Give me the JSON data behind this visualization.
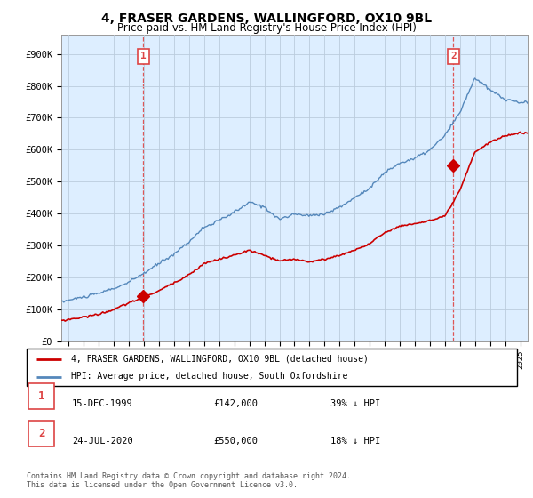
{
  "title": "4, FRASER GARDENS, WALLINGFORD, OX10 9BL",
  "subtitle": "Price paid vs. HM Land Registry's House Price Index (HPI)",
  "title_fontsize": 10,
  "subtitle_fontsize": 8.5,
  "ylabel_ticks": [
    "£0",
    "£100K",
    "£200K",
    "£300K",
    "£400K",
    "£500K",
    "£600K",
    "£700K",
    "£800K",
    "£900K"
  ],
  "ytick_values": [
    0,
    100000,
    200000,
    300000,
    400000,
    500000,
    600000,
    700000,
    800000,
    900000
  ],
  "ylim": [
    0,
    960000
  ],
  "xlim_start": 1994.5,
  "xlim_end": 2025.5,
  "hpi_color": "#5588bb",
  "price_color": "#cc0000",
  "dashed_color": "#dd4444",
  "chart_bg": "#ddeeff",
  "transaction1_x": 1999.96,
  "transaction1_y": 142000,
  "transaction1_label": "1",
  "transaction1_date": "15-DEC-1999",
  "transaction1_price": "£142,000",
  "transaction1_hpi": "39% ↓ HPI",
  "transaction2_x": 2020.56,
  "transaction2_y": 550000,
  "transaction2_label": "2",
  "transaction2_date": "24-JUL-2020",
  "transaction2_price": "£550,000",
  "transaction2_hpi": "18% ↓ HPI",
  "legend_line1": "4, FRASER GARDENS, WALLINGFORD, OX10 9BL (detached house)",
  "legend_line2": "HPI: Average price, detached house, South Oxfordshire",
  "footer": "Contains HM Land Registry data © Crown copyright and database right 2024.\nThis data is licensed under the Open Government Licence v3.0.",
  "background_color": "#ffffff",
  "grid_color": "#bbccdd",
  "hpi_key_years": [
    1994,
    1995,
    1996,
    1997,
    1998,
    1999,
    2000,
    2001,
    2002,
    2003,
    2004,
    2005,
    2006,
    2007,
    2008,
    2009,
    2010,
    2011,
    2012,
    2013,
    2014,
    2015,
    2016,
    2017,
    2018,
    2019,
    2020,
    2021,
    2022,
    2023,
    2024,
    2025
  ],
  "hpi_key_vals": [
    118000,
    128000,
    138000,
    148000,
    163000,
    182000,
    210000,
    240000,
    270000,
    310000,
    355000,
    375000,
    400000,
    430000,
    415000,
    378000,
    393000,
    388000,
    395000,
    415000,
    445000,
    478000,
    525000,
    555000,
    570000,
    595000,
    640000,
    710000,
    820000,
    780000,
    750000,
    740000
  ],
  "price_key_years": [
    1994,
    1995,
    1996,
    1997,
    1998,
    1999,
    2000,
    2001,
    2002,
    2003,
    2004,
    2005,
    2006,
    2007,
    2008,
    2009,
    2010,
    2011,
    2012,
    2013,
    2014,
    2015,
    2016,
    2017,
    2018,
    2019,
    2020,
    2021,
    2022,
    2023,
    2024,
    2025
  ],
  "price_key_vals": [
    60000,
    68000,
    76000,
    85000,
    100000,
    120000,
    138000,
    158000,
    183000,
    210000,
    245000,
    258000,
    270000,
    285000,
    268000,
    250000,
    255000,
    248000,
    255000,
    268000,
    285000,
    305000,
    340000,
    360000,
    368000,
    378000,
    390000,
    470000,
    590000,
    620000,
    640000,
    650000
  ],
  "hpi_noise_seed": 10,
  "hpi_noise_scale": 8000,
  "price_noise_seed": 20,
  "price_noise_scale": 5000
}
